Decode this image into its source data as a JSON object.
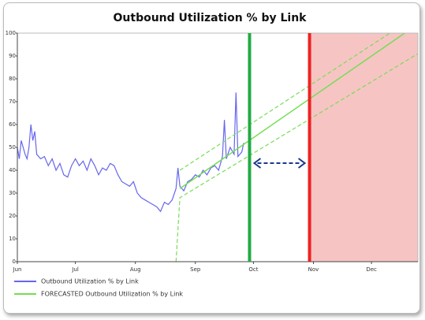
{
  "chart_data": {
    "type": "line",
    "title": "Outbound Utilization % by Link",
    "xlim": [
      0,
      207
    ],
    "xticks": [
      {
        "value": 0,
        "label": "Jun"
      },
      {
        "value": 30,
        "label": "Jul"
      },
      {
        "value": 61,
        "label": "Aug"
      },
      {
        "value": 92,
        "label": "Sep"
      },
      {
        "value": 122,
        "label": "Oct"
      },
      {
        "value": 153,
        "label": "Nov"
      },
      {
        "value": 183,
        "label": "Dec"
      }
    ],
    "ylim": [
      0,
      100
    ],
    "yticks": [
      0,
      10,
      20,
      30,
      40,
      50,
      60,
      70,
      80,
      90,
      100
    ],
    "series": [
      {
        "name": "Outbound Utilization % by Link",
        "color": "#6666ee",
        "x": [
          0,
          1,
          2,
          4,
          5,
          6,
          7,
          8,
          9,
          10,
          12,
          14,
          16,
          18,
          20,
          22,
          24,
          26,
          28,
          30,
          32,
          34,
          36,
          38,
          40,
          42,
          44,
          46,
          48,
          50,
          52,
          54,
          56,
          58,
          60,
          62,
          64,
          66,
          68,
          70,
          72,
          74,
          76,
          78,
          80,
          82,
          83,
          84,
          86,
          88,
          90,
          92,
          94,
          96,
          98,
          100,
          102,
          104,
          106,
          107,
          108,
          110,
          112,
          113,
          114,
          116,
          117
        ],
        "values": [
          50,
          45,
          53,
          47,
          45,
          50,
          60,
          53,
          57,
          47,
          45,
          46,
          42,
          45,
          40,
          43,
          38,
          37,
          42,
          45,
          42,
          44,
          40,
          45,
          42,
          38,
          41,
          40,
          43,
          42,
          38,
          35,
          34,
          33,
          35,
          30,
          28,
          27,
          26,
          25,
          24,
          22,
          26,
          25,
          27,
          32,
          41,
          33,
          31,
          35,
          36,
          38,
          37,
          40,
          38,
          41,
          42,
          40,
          46,
          62,
          45,
          50,
          47,
          74,
          46,
          48,
          52
        ]
      },
      {
        "name": "FORECASTED Outbound Utilization % by Link",
        "color": "#77dd55",
        "x": [
          82,
          84,
          207
        ],
        "values": [
          null,
          32,
          104
        ],
        "lower": [
          0,
          28,
          91
        ],
        "upper": [
          null,
          40,
          108
        ]
      }
    ],
    "markers": [
      {
        "x": 120,
        "color": "#22aa44"
      },
      {
        "x": 151,
        "color": "#ee2222"
      }
    ],
    "shaded_region": {
      "from": 151,
      "color": "#f7c4c4"
    },
    "arrow_color": "#1a3a8a"
  }
}
